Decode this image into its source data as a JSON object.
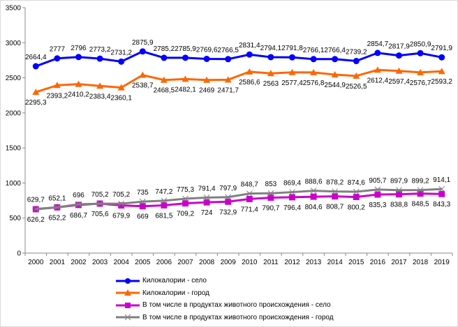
{
  "chart_data": {
    "type": "line",
    "categories": [
      "2000",
      "2001",
      "2002",
      "2003",
      "2004",
      "2005",
      "2006",
      "2007",
      "2008",
      "2009",
      "2010",
      "2011",
      "2012",
      "2013",
      "2014",
      "2015",
      "2016",
      "2017",
      "2018",
      "2019"
    ],
    "ylim": [
      0,
      3500
    ],
    "yticks": [
      0,
      500,
      1000,
      1500,
      2000,
      2500,
      3000,
      3500
    ],
    "grid": false,
    "legend_position": "bottom",
    "series": [
      {
        "name": "Килокалории - село",
        "color": "#0000ff",
        "marker": "circle",
        "label_pos": "above",
        "values": [
          2664.4,
          2777,
          2796,
          2773.2,
          2731.2,
          2875.9,
          2785.2,
          2785.9,
          2769.6,
          2766.5,
          2831.4,
          2794.1,
          2791.8,
          2766.1,
          2766.4,
          2739.2,
          2854.7,
          2817.9,
          2850.9,
          2791.9
        ]
      },
      {
        "name": "Килокалории - город",
        "color": "#ff6600",
        "marker": "triangle",
        "label_pos": "below",
        "values": [
          2295.3,
          2393.2,
          2410.2,
          2383.4,
          2360.1,
          2538.7,
          2468.5,
          2482.1,
          2469,
          2471.7,
          2586.6,
          2563,
          2577.4,
          2576.8,
          2544.9,
          2526.5,
          2612.4,
          2597.4,
          2576.7,
          2593.2
        ]
      },
      {
        "name": "В том числе в продуктах животного происхождения - село",
        "color": "#cc00cc",
        "marker": "square",
        "label_pos": "below",
        "values": [
          626.2,
          652.2,
          686.7,
          705.6,
          679.9,
          669,
          681.5,
          709.2,
          724,
          732.9,
          771.4,
          790.7,
          796.4,
          804.6,
          808.7,
          800.2,
          835.3,
          838.8,
          848.5,
          843.3
        ]
      },
      {
        "name": "В том числе в продуктах животного происхождения - город",
        "color": "#808080",
        "marker": "x",
        "label_pos": "above",
        "values": [
          629.7,
          652.1,
          696,
          705.2,
          705.2,
          735,
          747.2,
          775.3,
          791.4,
          797.9,
          848.7,
          853,
          869.4,
          888.6,
          878.2,
          874.6,
          905.7,
          897.9,
          899.2,
          914.1
        ]
      }
    ]
  }
}
